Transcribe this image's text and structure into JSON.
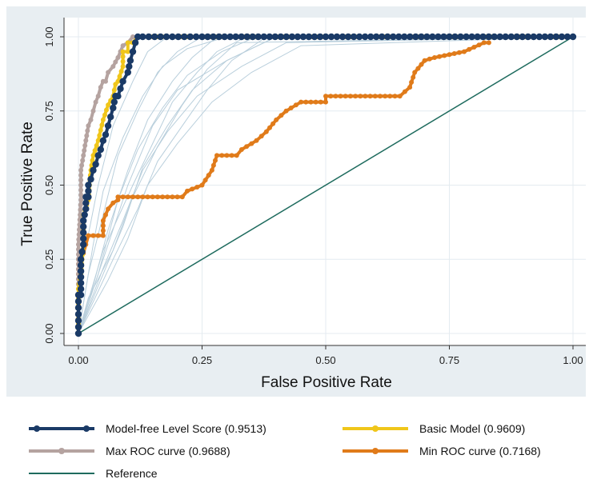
{
  "chart_data": {
    "type": "line",
    "xlabel": "False Positive Rate",
    "ylabel": "True Positive Rate",
    "xlim": [
      0,
      1
    ],
    "ylim": [
      0,
      1
    ],
    "x_ticks": [
      "0.00",
      "0.25",
      "0.50",
      "0.75",
      "1.00"
    ],
    "y_ticks": [
      "0.00",
      "0.25",
      "0.50",
      "0.75",
      "1.00"
    ],
    "grid": true,
    "legend_position": "bottom",
    "series": [
      {
        "name": "Model-free Level Score (0.9513)",
        "color": "#1a3a66",
        "x": [
          0.0,
          0.0,
          0.005,
          0.005,
          0.01,
          0.01,
          0.015,
          0.015,
          0.02,
          0.02,
          0.025,
          0.03,
          0.035,
          0.04,
          0.045,
          0.05,
          0.055,
          0.06,
          0.065,
          0.07,
          0.075,
          0.08,
          0.09,
          0.1,
          0.105,
          0.11,
          0.115,
          0.12,
          0.13,
          0.25,
          0.5,
          0.75,
          1.0
        ],
        "y": [
          0.0,
          0.13,
          0.13,
          0.25,
          0.3,
          0.38,
          0.42,
          0.46,
          0.46,
          0.5,
          0.52,
          0.55,
          0.57,
          0.6,
          0.62,
          0.65,
          0.67,
          0.7,
          0.73,
          0.76,
          0.8,
          0.8,
          0.85,
          0.88,
          0.92,
          0.95,
          0.98,
          1.0,
          1.0,
          1.0,
          1.0,
          1.0,
          1.0
        ]
      },
      {
        "name": "Basic Model (0.9609)",
        "color": "#f0c61a",
        "x": [
          0.0,
          0.0,
          0.005,
          0.01,
          0.01,
          0.02,
          0.025,
          0.03,
          0.04,
          0.05,
          0.06,
          0.07,
          0.075,
          0.08,
          0.09,
          0.09,
          0.1,
          0.1,
          0.11,
          0.12,
          0.12,
          0.2,
          1.0
        ],
        "y": [
          0.0,
          0.15,
          0.2,
          0.3,
          0.4,
          0.45,
          0.55,
          0.6,
          0.65,
          0.72,
          0.77,
          0.8,
          0.84,
          0.85,
          0.9,
          0.95,
          0.95,
          0.98,
          0.98,
          1.0,
          1.0,
          1.0,
          1.0
        ]
      },
      {
        "name": "Max ROC curve (0.9688)",
        "color": "#b5a3a0",
        "x": [
          0.0,
          0.0,
          0.005,
          0.005,
          0.01,
          0.015,
          0.02,
          0.025,
          0.03,
          0.035,
          0.04,
          0.045,
          0.05,
          0.055,
          0.06,
          0.07,
          0.08,
          0.09,
          0.1,
          0.11,
          1.0
        ],
        "y": [
          0.0,
          0.3,
          0.45,
          0.55,
          0.6,
          0.65,
          0.7,
          0.72,
          0.75,
          0.78,
          0.8,
          0.83,
          0.85,
          0.85,
          0.88,
          0.9,
          0.93,
          0.97,
          0.98,
          1.0,
          1.0
        ]
      },
      {
        "name": "Min ROC curve (0.7168)",
        "color": "#e07b1a",
        "x": [
          0.0,
          0.0,
          0.01,
          0.015,
          0.02,
          0.03,
          0.05,
          0.05,
          0.06,
          0.07,
          0.08,
          0.08,
          0.21,
          0.22,
          0.25,
          0.27,
          0.28,
          0.32,
          0.33,
          0.36,
          0.38,
          0.4,
          0.42,
          0.45,
          0.5,
          0.5,
          0.54,
          0.55,
          0.63,
          0.65,
          0.67,
          0.68,
          0.7,
          0.72,
          0.78,
          0.82,
          0.83
        ],
        "y": [
          0.0,
          0.25,
          0.27,
          0.3,
          0.33,
          0.33,
          0.33,
          0.38,
          0.42,
          0.44,
          0.45,
          0.46,
          0.46,
          0.48,
          0.5,
          0.55,
          0.6,
          0.6,
          0.62,
          0.65,
          0.68,
          0.72,
          0.75,
          0.78,
          0.78,
          0.8,
          0.8,
          0.8,
          0.8,
          0.8,
          0.83,
          0.88,
          0.92,
          0.93,
          0.95,
          0.98,
          0.98
        ]
      },
      {
        "name": "Reference",
        "color": "#1e6b5e",
        "x": [
          0.0,
          1.0
        ],
        "y": [
          0.0,
          1.0
        ]
      }
    ],
    "background_curves": {
      "color": "#b9cfdc",
      "curves": [
        {
          "x": [
            0,
            0.02,
            0.05,
            0.08,
            0.12,
            0.16,
            0.2,
            0.25,
            1.0
          ],
          "y": [
            0,
            0.2,
            0.4,
            0.6,
            0.75,
            0.88,
            0.95,
            1.0,
            1.0
          ]
        },
        {
          "x": [
            0,
            0.03,
            0.06,
            0.1,
            0.15,
            0.2,
            0.3,
            0.4,
            1.0
          ],
          "y": [
            0,
            0.15,
            0.3,
            0.5,
            0.7,
            0.82,
            0.92,
            1.0,
            1.0
          ]
        },
        {
          "x": [
            0,
            0.01,
            0.04,
            0.07,
            0.11,
            0.14,
            0.18,
            1.0
          ],
          "y": [
            0,
            0.25,
            0.5,
            0.7,
            0.85,
            0.95,
            1.0,
            1.0
          ]
        },
        {
          "x": [
            0,
            0.05,
            0.09,
            0.13,
            0.18,
            0.24,
            0.33,
            0.42,
            1.0
          ],
          "y": [
            0,
            0.22,
            0.38,
            0.55,
            0.68,
            0.8,
            0.9,
            0.98,
            1.0
          ]
        },
        {
          "x": [
            0,
            0.02,
            0.06,
            0.1,
            0.14,
            0.19,
            0.23,
            0.28,
            1.0
          ],
          "y": [
            0,
            0.1,
            0.35,
            0.55,
            0.72,
            0.85,
            0.93,
            1.0,
            1.0
          ]
        },
        {
          "x": [
            0,
            0.04,
            0.08,
            0.12,
            0.17,
            0.22,
            0.29,
            0.36,
            1.0
          ],
          "y": [
            0,
            0.2,
            0.45,
            0.62,
            0.76,
            0.87,
            0.95,
            1.0,
            1.0
          ]
        },
        {
          "x": [
            0,
            0.06,
            0.1,
            0.14,
            0.2,
            0.27,
            0.35,
            0.45,
            1.0
          ],
          "y": [
            0,
            0.18,
            0.32,
            0.5,
            0.64,
            0.78,
            0.88,
            0.97,
            1.0
          ]
        },
        {
          "x": [
            0,
            0.03,
            0.05,
            0.09,
            0.13,
            0.17,
            0.22,
            0.3,
            1.0
          ],
          "y": [
            0,
            0.3,
            0.48,
            0.66,
            0.8,
            0.9,
            0.96,
            1.0,
            1.0
          ]
        },
        {
          "x": [
            0,
            0.07,
            0.12,
            0.16,
            0.21,
            0.26,
            0.31,
            0.38,
            1.0
          ],
          "y": [
            0,
            0.25,
            0.42,
            0.58,
            0.7,
            0.82,
            0.92,
            1.0,
            1.0
          ]
        },
        {
          "x": [
            0,
            0.02,
            0.07,
            0.11,
            0.16,
            0.21,
            0.26,
            0.32,
            1.0
          ],
          "y": [
            0,
            0.12,
            0.28,
            0.46,
            0.63,
            0.77,
            0.89,
            0.98,
            1.0
          ]
        },
        {
          "x": [
            0,
            0.05,
            0.11,
            0.15,
            0.19,
            0.24,
            0.28,
            0.34,
            1.0
          ],
          "y": [
            0,
            0.28,
            0.5,
            0.64,
            0.78,
            0.88,
            0.95,
            1.0,
            1.0
          ]
        },
        {
          "x": [
            0,
            0.04,
            0.09,
            0.13,
            0.18,
            0.23,
            0.3,
            0.4,
            1.0
          ],
          "y": [
            0,
            0.16,
            0.36,
            0.56,
            0.7,
            0.82,
            0.92,
            1.0,
            1.0
          ]
        }
      ]
    }
  },
  "legend": {
    "items": [
      {
        "label": "Model-free Level Score (0.9513)",
        "color": "#1a3a66"
      },
      {
        "label": "Basic Model (0.9609)",
        "color": "#f0c61a"
      },
      {
        "label": "Max ROC curve (0.9688)",
        "color": "#b5a3a0"
      },
      {
        "label": "Min ROC curve (0.7168)",
        "color": "#e07b1a"
      },
      {
        "label": "Reference",
        "color": "#1e6b5e"
      }
    ]
  }
}
